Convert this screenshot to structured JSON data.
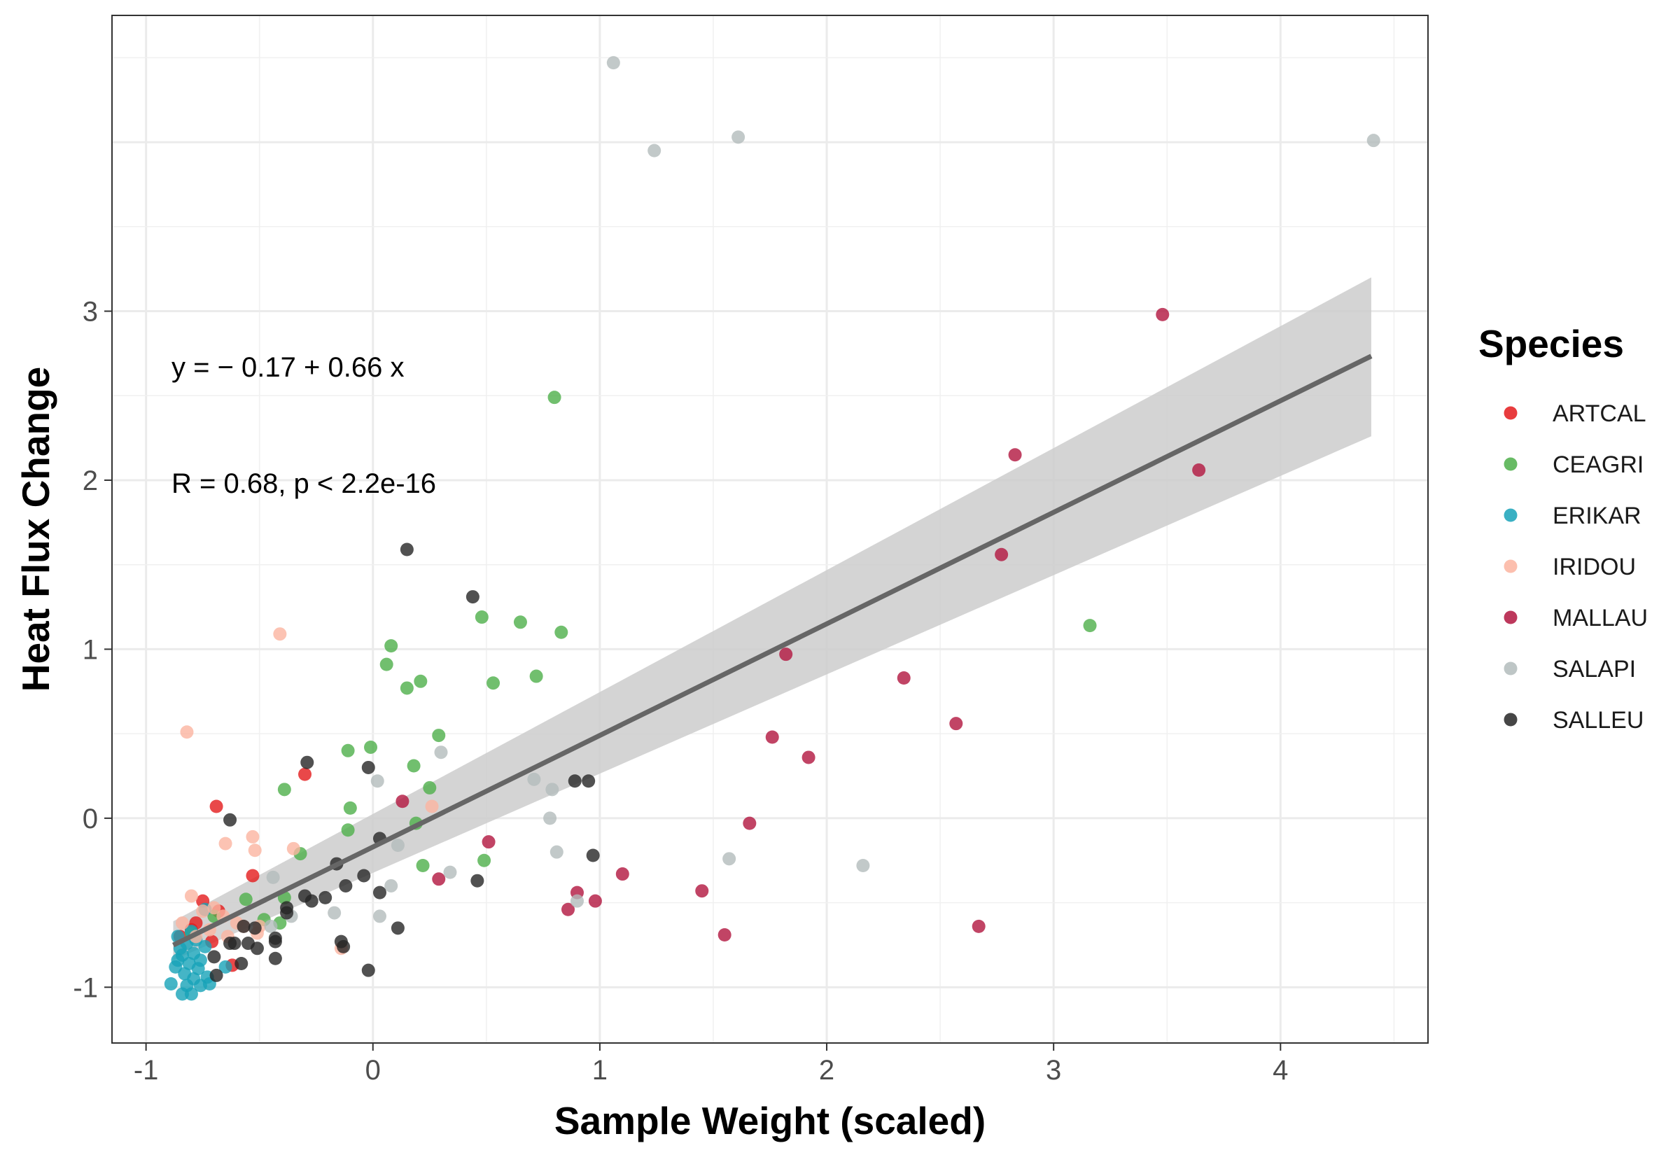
{
  "chart_data": {
    "type": "scatter",
    "xlabel": "Sample Weight (scaled)",
    "ylabel": "Heat Flux Change",
    "xlim": [
      -1.15,
      4.65
    ],
    "ylim": [
      -1.33,
      4.75
    ],
    "xticks": [
      -1,
      0,
      1,
      2,
      3,
      4
    ],
    "xtick_labels": [
      "-1",
      "0",
      "1",
      "2",
      "3",
      "4"
    ],
    "yticks": [
      -1,
      0,
      1,
      2,
      3
    ],
    "ytick_labels": [
      "-1",
      "0",
      "1",
      "2",
      "3"
    ],
    "grid": true,
    "legend": {
      "title": "Species",
      "placement": "right"
    },
    "annotations": {
      "equation": "y = − 0.17 + 0.66 x",
      "stats": "R = 0.68, p < 2.2e-16"
    },
    "regression": {
      "intercept": -0.17,
      "slope": 0.66,
      "x_range": [
        -0.88,
        4.4
      ],
      "ci_lower": [
        -0.84,
        2.26
      ],
      "ci_upper": [
        -0.61,
        3.2
      ],
      "color": "#666666",
      "band_color": "#cccccc"
    },
    "series": [
      {
        "name": "ARTCAL",
        "color": "#e41a1c",
        "points": [
          [
            -0.69,
            0.07
          ],
          [
            -0.3,
            0.26
          ],
          [
            -0.75,
            -0.49
          ],
          [
            -0.53,
            -0.34
          ],
          [
            -0.78,
            -0.62
          ],
          [
            -0.71,
            -0.73
          ],
          [
            -0.62,
            -0.87
          ],
          [
            -0.8,
            -0.66
          ],
          [
            -0.68,
            -0.55
          ],
          [
            -0.85,
            -0.7
          ]
        ]
      },
      {
        "name": "CEAGRI",
        "color": "#4daf4a",
        "points": [
          [
            0.8,
            2.49
          ],
          [
            3.16,
            1.14
          ],
          [
            0.48,
            1.19
          ],
          [
            0.65,
            1.16
          ],
          [
            0.83,
            1.1
          ],
          [
            0.08,
            1.02
          ],
          [
            0.06,
            0.91
          ],
          [
            0.72,
            0.84
          ],
          [
            0.21,
            0.81
          ],
          [
            0.53,
            0.8
          ],
          [
            0.15,
            0.77
          ],
          [
            0.29,
            0.49
          ],
          [
            -0.11,
            0.4
          ],
          [
            -0.01,
            0.42
          ],
          [
            0.18,
            0.31
          ],
          [
            -0.39,
            0.17
          ],
          [
            0.25,
            0.18
          ],
          [
            -0.1,
            0.06
          ],
          [
            -0.11,
            -0.07
          ],
          [
            0.19,
            -0.03
          ],
          [
            -0.32,
            -0.21
          ],
          [
            0.22,
            -0.28
          ],
          [
            0.49,
            -0.25
          ],
          [
            -0.39,
            -0.47
          ],
          [
            -0.56,
            -0.48
          ],
          [
            -0.41,
            -0.62
          ],
          [
            -0.48,
            -0.6
          ],
          [
            -0.7,
            -0.58
          ],
          [
            -0.8,
            -0.68
          ]
        ]
      },
      {
        "name": "ERIKAR",
        "color": "#17a2b8",
        "points": [
          [
            -0.89,
            -0.98
          ],
          [
            -0.84,
            -1.04
          ],
          [
            -0.8,
            -1.04
          ],
          [
            -0.76,
            -0.99
          ],
          [
            -0.79,
            -0.95
          ],
          [
            -0.83,
            -0.92
          ],
          [
            -0.87,
            -0.88
          ],
          [
            -0.81,
            -0.86
          ],
          [
            -0.77,
            -0.89
          ],
          [
            -0.73,
            -0.94
          ],
          [
            -0.84,
            -0.81
          ],
          [
            -0.79,
            -0.8
          ],
          [
            -0.85,
            -0.77
          ],
          [
            -0.82,
            -0.74
          ],
          [
            -0.78,
            -0.72
          ],
          [
            -0.86,
            -0.7
          ],
          [
            -0.74,
            -0.76
          ],
          [
            -0.72,
            -0.98
          ],
          [
            -0.82,
            -0.99
          ],
          [
            -0.65,
            -0.88
          ],
          [
            -0.8,
            -0.67
          ],
          [
            -0.74,
            -0.54
          ],
          [
            -0.86,
            -0.84
          ],
          [
            -0.76,
            -0.84
          ]
        ]
      },
      {
        "name": "IRIDOU",
        "color": "#fbb4a0",
        "points": [
          [
            -0.41,
            1.09
          ],
          [
            -0.82,
            0.51
          ],
          [
            -0.53,
            -0.11
          ],
          [
            -0.65,
            -0.15
          ],
          [
            -0.52,
            -0.19
          ],
          [
            -0.35,
            -0.18
          ],
          [
            0.26,
            0.07
          ],
          [
            -0.8,
            -0.46
          ],
          [
            -0.7,
            -0.53
          ],
          [
            -0.75,
            -0.55
          ],
          [
            -0.66,
            -0.58
          ],
          [
            -0.6,
            -0.62
          ],
          [
            -0.51,
            -0.68
          ],
          [
            -0.14,
            -0.77
          ],
          [
            -0.72,
            -0.66
          ],
          [
            -0.78,
            -0.7
          ],
          [
            -0.57,
            -0.64
          ],
          [
            -0.64,
            -0.7
          ],
          [
            -0.5,
            -0.64
          ],
          [
            -0.84,
            -0.62
          ]
        ]
      },
      {
        "name": "MALLAU",
        "color": "#b2153f",
        "points": [
          [
            3.48,
            2.98
          ],
          [
            2.83,
            2.15
          ],
          [
            3.64,
            2.06
          ],
          [
            2.77,
            1.56
          ],
          [
            1.82,
            0.97
          ],
          [
            2.34,
            0.83
          ],
          [
            2.57,
            0.56
          ],
          [
            1.76,
            0.48
          ],
          [
            1.92,
            0.36
          ],
          [
            0.13,
            0.1
          ],
          [
            1.66,
            -0.03
          ],
          [
            0.51,
            -0.14
          ],
          [
            1.1,
            -0.33
          ],
          [
            0.29,
            -0.36
          ],
          [
            1.45,
            -0.43
          ],
          [
            0.9,
            -0.44
          ],
          [
            0.98,
            -0.49
          ],
          [
            0.86,
            -0.54
          ],
          [
            2.67,
            -0.64
          ],
          [
            1.55,
            -0.69
          ]
        ]
      },
      {
        "name": "SALAPI",
        "color": "#b3bcbc",
        "points": [
          [
            1.06,
            4.47
          ],
          [
            1.61,
            4.03
          ],
          [
            1.24,
            3.95
          ],
          [
            4.41,
            4.01
          ],
          [
            0.3,
            0.39
          ],
          [
            0.71,
            0.23
          ],
          [
            0.79,
            0.17
          ],
          [
            0.02,
            0.22
          ],
          [
            0.78,
            0.0
          ],
          [
            0.81,
            -0.2
          ],
          [
            1.57,
            -0.24
          ],
          [
            2.16,
            -0.28
          ],
          [
            0.34,
            -0.32
          ],
          [
            0.11,
            -0.16
          ],
          [
            -0.44,
            -0.35
          ],
          [
            0.08,
            -0.4
          ],
          [
            0.9,
            -0.49
          ],
          [
            -0.17,
            -0.56
          ],
          [
            0.03,
            -0.58
          ],
          [
            -0.36,
            -0.58
          ],
          [
            -0.45,
            -0.64
          ]
        ]
      },
      {
        "name": "SALLEU",
        "color": "#262626",
        "points": [
          [
            0.15,
            1.59
          ],
          [
            0.44,
            1.31
          ],
          [
            -0.29,
            0.33
          ],
          [
            -0.02,
            0.3
          ],
          [
            0.89,
            0.22
          ],
          [
            0.95,
            0.22
          ],
          [
            -0.63,
            -0.01
          ],
          [
            0.03,
            -0.12
          ],
          [
            0.97,
            -0.22
          ],
          [
            -0.16,
            -0.27
          ],
          [
            0.46,
            -0.37
          ],
          [
            -0.12,
            -0.4
          ],
          [
            0.03,
            -0.44
          ],
          [
            -0.04,
            -0.34
          ],
          [
            -0.3,
            -0.46
          ],
          [
            -0.21,
            -0.47
          ],
          [
            -0.27,
            -0.49
          ],
          [
            -0.38,
            -0.53
          ],
          [
            -0.38,
            -0.56
          ],
          [
            -0.57,
            -0.64
          ],
          [
            0.11,
            -0.65
          ],
          [
            -0.52,
            -0.65
          ],
          [
            -0.43,
            -0.71
          ],
          [
            -0.43,
            -0.73
          ],
          [
            -0.61,
            -0.74
          ],
          [
            -0.55,
            -0.74
          ],
          [
            -0.14,
            -0.73
          ],
          [
            -0.51,
            -0.77
          ],
          [
            -0.13,
            -0.76
          ],
          [
            -0.7,
            -0.82
          ],
          [
            -0.43,
            -0.83
          ],
          [
            -0.58,
            -0.86
          ],
          [
            -0.02,
            -0.9
          ],
          [
            -0.69,
            -0.93
          ],
          [
            -0.63,
            -0.74
          ]
        ]
      }
    ]
  }
}
